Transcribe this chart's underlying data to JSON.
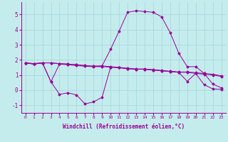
{
  "xlabel": "Windchill (Refroidissement éolien,°C)",
  "background_color": "#c5eced",
  "grid_color": "#a8d8dc",
  "line_color": "#990099",
  "x": [
    0,
    1,
    2,
    3,
    4,
    5,
    6,
    7,
    8,
    9,
    10,
    11,
    12,
    13,
    14,
    15,
    16,
    17,
    18,
    19,
    20,
    21,
    22,
    23
  ],
  "line1_y": [
    1.8,
    1.75,
    1.8,
    1.8,
    1.75,
    1.72,
    1.68,
    1.62,
    1.58,
    1.6,
    1.55,
    1.5,
    1.45,
    1.4,
    1.4,
    1.35,
    1.3,
    1.25,
    1.2,
    1.2,
    1.15,
    1.1,
    1.05,
    0.95
  ],
  "line2_y": [
    1.8,
    1.75,
    1.8,
    1.8,
    1.75,
    1.72,
    1.68,
    1.62,
    1.58,
    1.6,
    2.7,
    3.9,
    5.15,
    5.25,
    5.2,
    5.15,
    4.85,
    3.8,
    2.45,
    1.55,
    1.55,
    1.1,
    0.4,
    0.15
  ],
  "line3_y": [
    1.8,
    1.72,
    1.8,
    0.55,
    1.72,
    1.68,
    1.62,
    1.58,
    1.55,
    1.55,
    1.52,
    1.48,
    1.42,
    1.38,
    1.38,
    1.33,
    1.28,
    1.23,
    1.18,
    1.18,
    1.1,
    1.05,
    1.0,
    0.9
  ],
  "line4_y": [
    1.8,
    1.72,
    1.8,
    0.55,
    -0.28,
    -0.18,
    -0.32,
    -0.92,
    -0.78,
    -0.48,
    1.52,
    1.48,
    1.42,
    1.38,
    1.38,
    1.33,
    1.28,
    1.23,
    1.18,
    0.58,
    1.1,
    0.35,
    0.08,
    0.05
  ],
  "ylim": [
    -1.5,
    5.8
  ],
  "yticks": [
    -1,
    0,
    1,
    2,
    3,
    4,
    5
  ],
  "xlim": [
    -0.5,
    23.5
  ],
  "xtick_fontsize": 4.5,
  "ytick_fontsize": 5.5,
  "xlabel_fontsize": 5.5
}
